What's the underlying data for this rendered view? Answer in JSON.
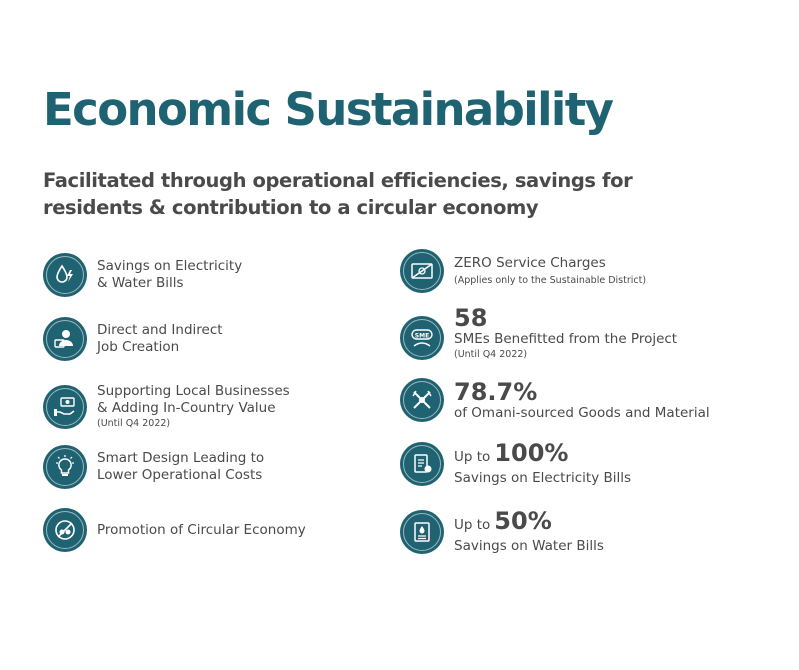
{
  "title": "Economic Sustainability",
  "subtitle": "Facilitated through operational efficiencies, savings for residents & contribution to a circular economy",
  "left_items": [
    {
      "icon": "water-electricity-icon",
      "line1": "Savings on Electricity",
      "line2": "& Water Bills"
    },
    {
      "icon": "job-creation-icon",
      "line1": "Direct and Indirect",
      "line2": "Job Creation"
    },
    {
      "icon": "hand-money-icon",
      "line1": "Supporting Local Businesses",
      "line2": "& Adding In-Country Value",
      "note": "(Until Q4 2022)"
    },
    {
      "icon": "lightbulb-icon",
      "line1": "Smart Design Leading to",
      "line2": "Lower Operational Costs"
    },
    {
      "icon": "recycle-icon",
      "line1": "Promotion of Circular Economy"
    }
  ],
  "right_items": [
    {
      "icon": "zero-charges-icon",
      "line1": "ZERO Service Charges",
      "note": "(Applies only to the Sustainable District)"
    },
    {
      "icon": "sme-icon",
      "value": "58",
      "line1": "SMEs Benefitted from the Project",
      "note": "(Until Q4 2022)"
    },
    {
      "icon": "tools-icon",
      "value": "78.7%",
      "line1": "of Omani-sourced Goods and Material"
    },
    {
      "icon": "electricity-bill-icon",
      "prefix": "Up to",
      "value": "100%",
      "line1": "Savings on Electricity Bills"
    },
    {
      "icon": "water-bill-icon",
      "prefix": "Up to",
      "value": "50%",
      "line1": "Savings on Water Bills"
    }
  ],
  "colors": {
    "accent": "#1f6272",
    "text": "#4a4a4a"
  }
}
